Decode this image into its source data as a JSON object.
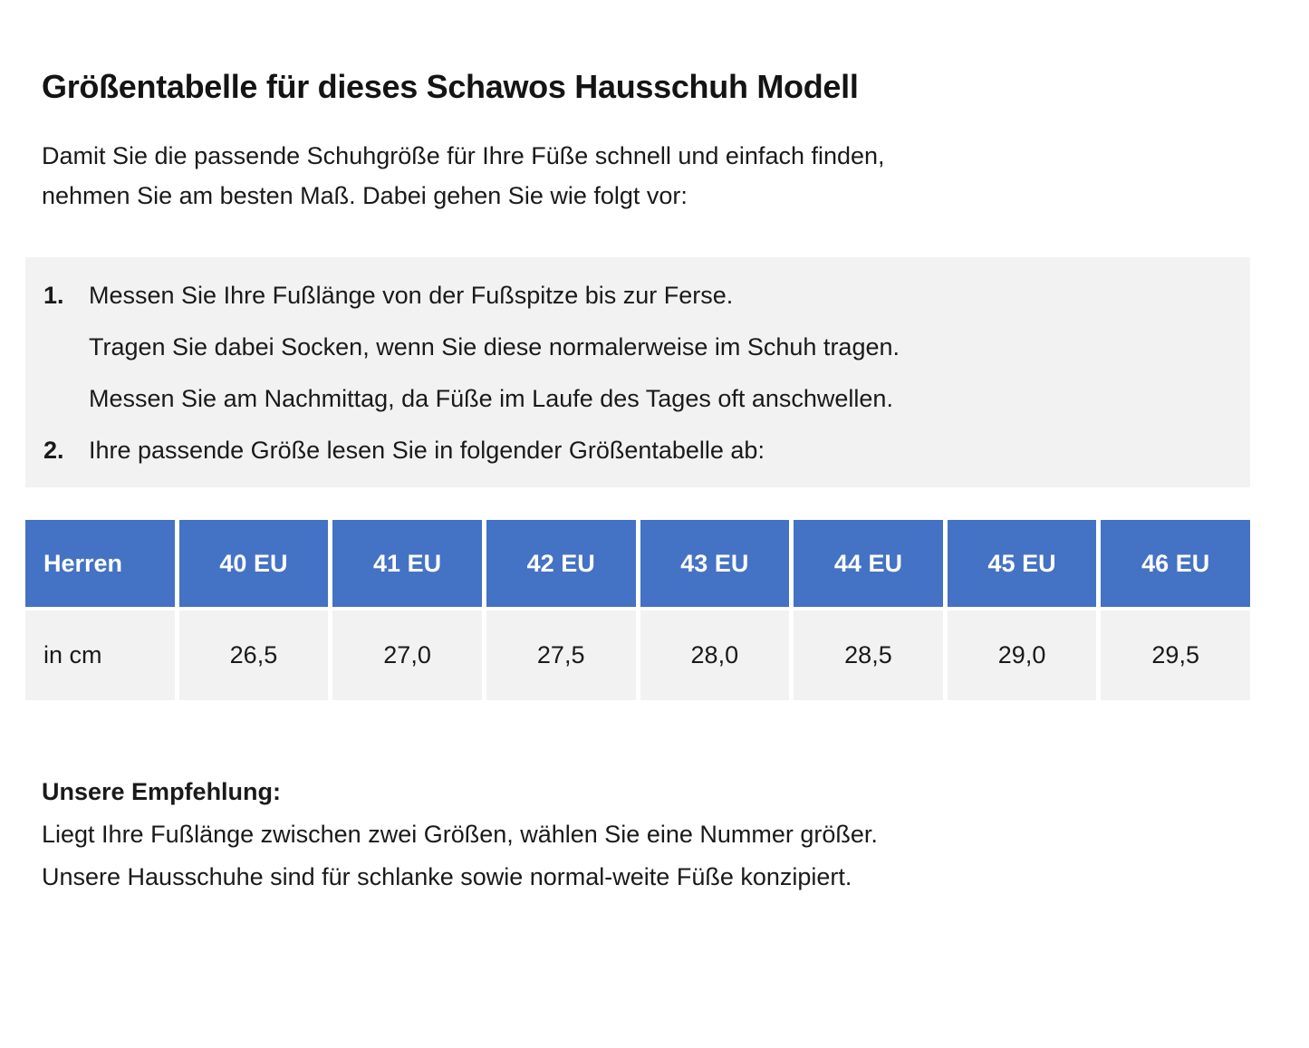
{
  "page": {
    "title": "Größentabelle für dieses Schawos Hausschuh Modell",
    "intro_line1": "Damit Sie die passende Schuhgröße für Ihre Füße schnell und einfach finden,",
    "intro_line2": "nehmen Sie am besten Maß. Dabei gehen Sie wie folgt vor:"
  },
  "instructions": {
    "item1_number": "1.",
    "item1_text": "Messen Sie Ihre Fußlänge von der Fußspitze bis zur Ferse.",
    "item1_sub1": "Tragen Sie dabei Socken, wenn Sie diese normalerweise im Schuh tragen.",
    "item1_sub2": "Messen Sie am Nachmittag, da Füße im Laufe des Tages oft anschwellen.",
    "item2_number": "2.",
    "item2_text": "Ihre passende Größe lesen Sie in folgender Größentabelle ab:"
  },
  "size_table": {
    "header_row": [
      "Herren",
      "40 EU",
      "41 EU",
      "42 EU",
      "43 EU",
      "44 EU",
      "45 EU",
      "46 EU"
    ],
    "data_row": [
      "in cm",
      "26,5",
      "27,0",
      "27,5",
      "28,0",
      "28,5",
      "29,0",
      "29,5"
    ]
  },
  "recommendation": {
    "heading": "Unsere Empfehlung:",
    "line1": "Liegt Ihre Fußlänge zwischen zwei Größen, wählen Sie eine Nummer größer.",
    "line2": "Unsere Hausschuhe sind für schlanke sowie normal-weite Füße konzipiert."
  },
  "colors": {
    "table_header_blue": "#4472c4",
    "table_row_gray": "#f2f2f2",
    "instruction_box_gray": "#f2f2f2",
    "text": "#1a1a1a",
    "header_text": "#ffffff"
  },
  "chart_data": {
    "type": "table",
    "title": "Größentabelle für dieses Schawos Hausschuh Modell",
    "columns": [
      "Herren",
      "40 EU",
      "41 EU",
      "42 EU",
      "43 EU",
      "44 EU",
      "45 EU",
      "46 EU"
    ],
    "rows": [
      [
        "in cm",
        "26,5",
        "27,0",
        "27,5",
        "28,0",
        "28,5",
        "29,0",
        "29,5"
      ]
    ]
  }
}
